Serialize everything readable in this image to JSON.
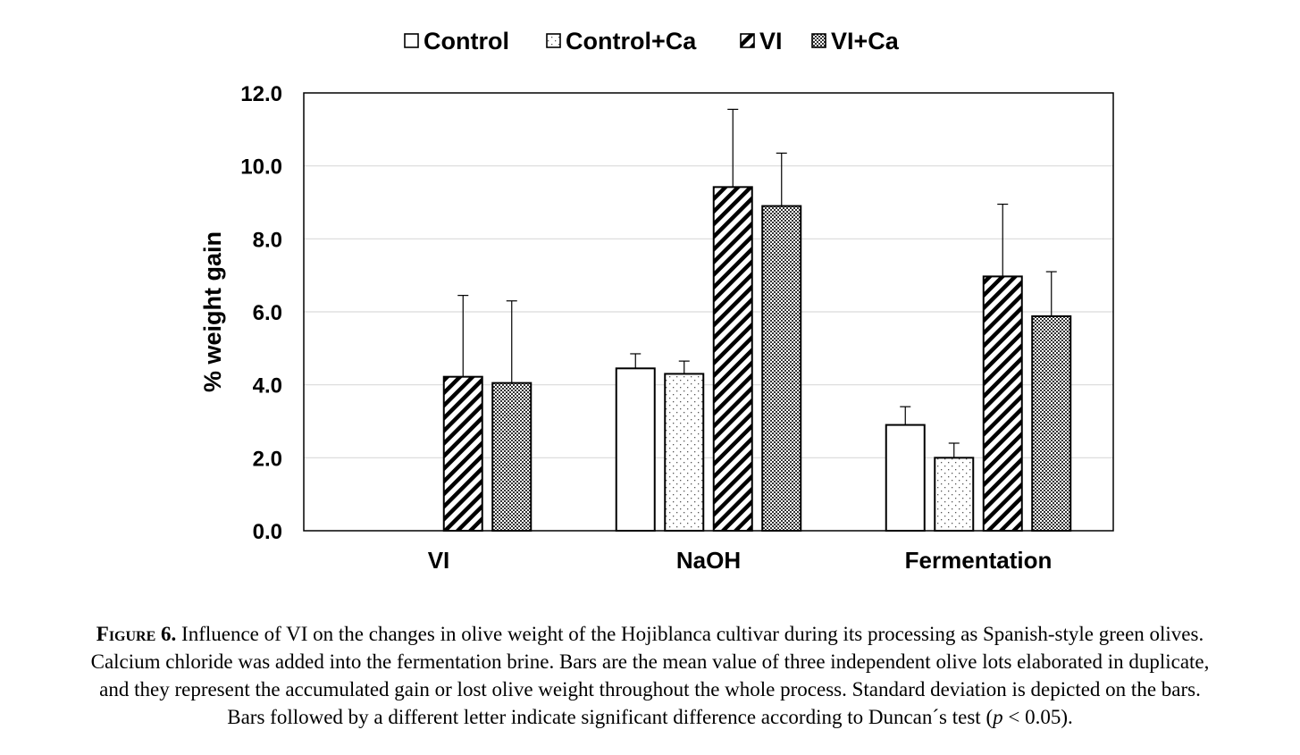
{
  "chart_data": {
    "type": "bar",
    "categories": [
      "VI",
      "NaOH",
      "Fermentation"
    ],
    "ylabel": "% weight gain",
    "xlabel": "",
    "ylim": [
      0,
      12
    ],
    "yticks": [
      "0.0",
      "2.0",
      "4.0",
      "6.0",
      "8.0",
      "10.0",
      "12.0"
    ],
    "grid": true,
    "legend_position": "top",
    "series": [
      {
        "name": "Control",
        "pattern": "none",
        "values": [
          null,
          4.45,
          2.9
        ],
        "errors": [
          null,
          0.4,
          0.5
        ]
      },
      {
        "name": "Control+Ca",
        "pattern": "dots",
        "values": [
          null,
          4.3,
          2.0
        ],
        "errors": [
          null,
          0.35,
          0.4
        ]
      },
      {
        "name": "VI",
        "pattern": "diagonal-hatch",
        "values": [
          4.22,
          9.42,
          6.97
        ],
        "errors": [
          2.23,
          2.13,
          1.98
        ]
      },
      {
        "name": "VI+Ca",
        "pattern": "crosshatch",
        "values": [
          4.05,
          8.9,
          5.88
        ],
        "errors": [
          2.25,
          1.45,
          1.22
        ]
      }
    ]
  },
  "caption": {
    "label": "Figure 6.",
    "line1": "Influence of VI on the changes in olive weight of the Hojiblanca cultivar during its processing as Spanish-style green olives.",
    "line2": "Calcium chloride was added into the fermentation brine. Bars are the mean value of three independent olive lots elaborated in duplicate,",
    "line3": "and they represent the accumulated gain or lost olive weight throughout the whole process. Standard deviation is depicted on the bars.",
    "line4_before": "Bars followed by a different letter indicate significant difference according to Duncan´s test (",
    "line4_p": "p",
    "line4_after": " < 0.05)."
  }
}
